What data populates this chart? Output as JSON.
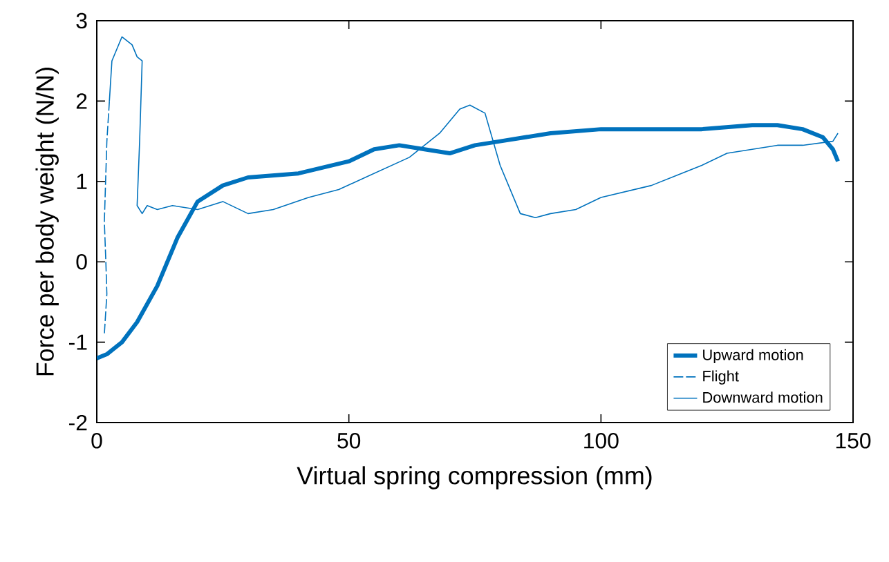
{
  "chart_data": {
    "type": "line",
    "xlabel": "Virtual spring compression (mm)",
    "ylabel": "Force per body weight (N/N)",
    "xlim": [
      0,
      150
    ],
    "ylim": [
      -2,
      3
    ],
    "xticks": [
      0,
      50,
      100,
      150
    ],
    "yticks": [
      -2,
      -1,
      0,
      1,
      2,
      3
    ],
    "grid": false,
    "legend": "bottom right",
    "marker": "none",
    "series": [
      {
        "name": "Upward motion",
        "color": "#0072bd",
        "line_style": "solid",
        "x": [
          0,
          2,
          5,
          8,
          12,
          16,
          20,
          25,
          30,
          40,
          50,
          55,
          60,
          65,
          70,
          75,
          80,
          90,
          100,
          110,
          120,
          130,
          135,
          140,
          144,
          146,
          147
        ],
        "values": [
          -1.2,
          -1.15,
          -1.0,
          -0.75,
          -0.3,
          0.3,
          0.75,
          0.95,
          1.05,
          1.1,
          1.25,
          1.4,
          1.45,
          1.4,
          1.35,
          1.45,
          1.5,
          1.6,
          1.65,
          1.65,
          1.65,
          1.7,
          1.7,
          1.65,
          1.55,
          1.4,
          1.25
        ]
      },
      {
        "name": "Flight",
        "color": "#0072bd",
        "line_style": "dashed",
        "x": [
          2.5,
          2,
          1.5,
          1.8,
          2,
          1.5
        ],
        "values": [
          2.0,
          1.5,
          0.5,
          0.0,
          -0.4,
          -0.9
        ]
      },
      {
        "name": "Downward motion",
        "color": "#0072bd",
        "line_style": "solid",
        "x": [
          147,
          146,
          140,
          135,
          125,
          120,
          110,
          100,
          95,
          90,
          87,
          84,
          80,
          77,
          74,
          72,
          68,
          62,
          55,
          48,
          42,
          35,
          30,
          25,
          20,
          15,
          12,
          10,
          9,
          8,
          8.5,
          9,
          8,
          7,
          5,
          3,
          2.5
        ],
        "values": [
          1.6,
          1.5,
          1.45,
          1.45,
          1.35,
          1.2,
          0.95,
          0.8,
          0.65,
          0.6,
          0.55,
          0.6,
          1.2,
          1.85,
          1.95,
          1.9,
          1.6,
          1.3,
          1.1,
          0.9,
          0.8,
          0.65,
          0.6,
          0.75,
          0.65,
          0.7,
          0.65,
          0.7,
          0.6,
          0.7,
          1.5,
          2.5,
          2.55,
          2.7,
          2.8,
          2.5,
          2.0
        ]
      }
    ]
  }
}
